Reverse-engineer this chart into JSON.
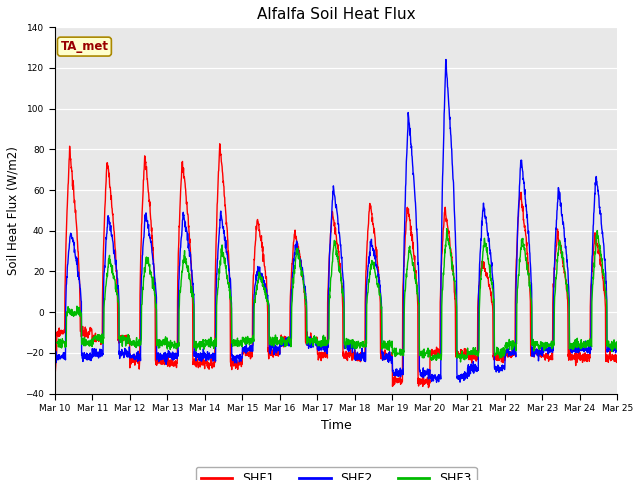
{
  "title": "Alfalfa Soil Heat Flux",
  "xlabel": "Time",
  "ylabel": "Soil Heat Flux (W/m2)",
  "ylim": [
    -40,
    140
  ],
  "yticks": [
    -40,
    -20,
    0,
    20,
    40,
    60,
    80,
    100,
    120,
    140
  ],
  "background_color": "#e8e8e8",
  "line_colors": {
    "SHF1": "#ff0000",
    "SHF2": "#0000ff",
    "SHF3": "#00bb00"
  },
  "line_width": 1.0,
  "annotation_text": "TA_met",
  "annotation_bg": "#ffffcc",
  "annotation_border": "#aa8800",
  "num_days": 15,
  "start_day": 10,
  "samples_per_day": 144,
  "shf1_peaks": [
    79,
    75,
    77,
    75,
    82,
    46,
    40,
    49,
    54,
    52,
    51,
    25,
    60,
    39,
    38
  ],
  "shf2_peaks": [
    40,
    48,
    49,
    49,
    48,
    22,
    34,
    62,
    35,
    98,
    123,
    53,
    76,
    61,
    67
  ],
  "shf3_peaks": [
    0,
    27,
    28,
    29,
    31,
    19,
    31,
    35,
    26,
    32,
    40,
    36,
    37,
    35,
    39
  ],
  "shf1_night": [
    -10,
    -13,
    -24,
    -25,
    -25,
    -20,
    -14,
    -21,
    -22,
    -34,
    -20,
    -22,
    -20,
    -22,
    -22
  ],
  "shf2_night": [
    -22,
    -20,
    -22,
    -21,
    -22,
    -18,
    -15,
    -17,
    -22,
    -30,
    -32,
    -28,
    -20,
    -18,
    -18
  ],
  "shf3_night": [
    -15,
    -13,
    -15,
    -16,
    -15,
    -14,
    -14,
    -15,
    -16,
    -20,
    -22,
    -20,
    -16,
    -16,
    -16
  ]
}
